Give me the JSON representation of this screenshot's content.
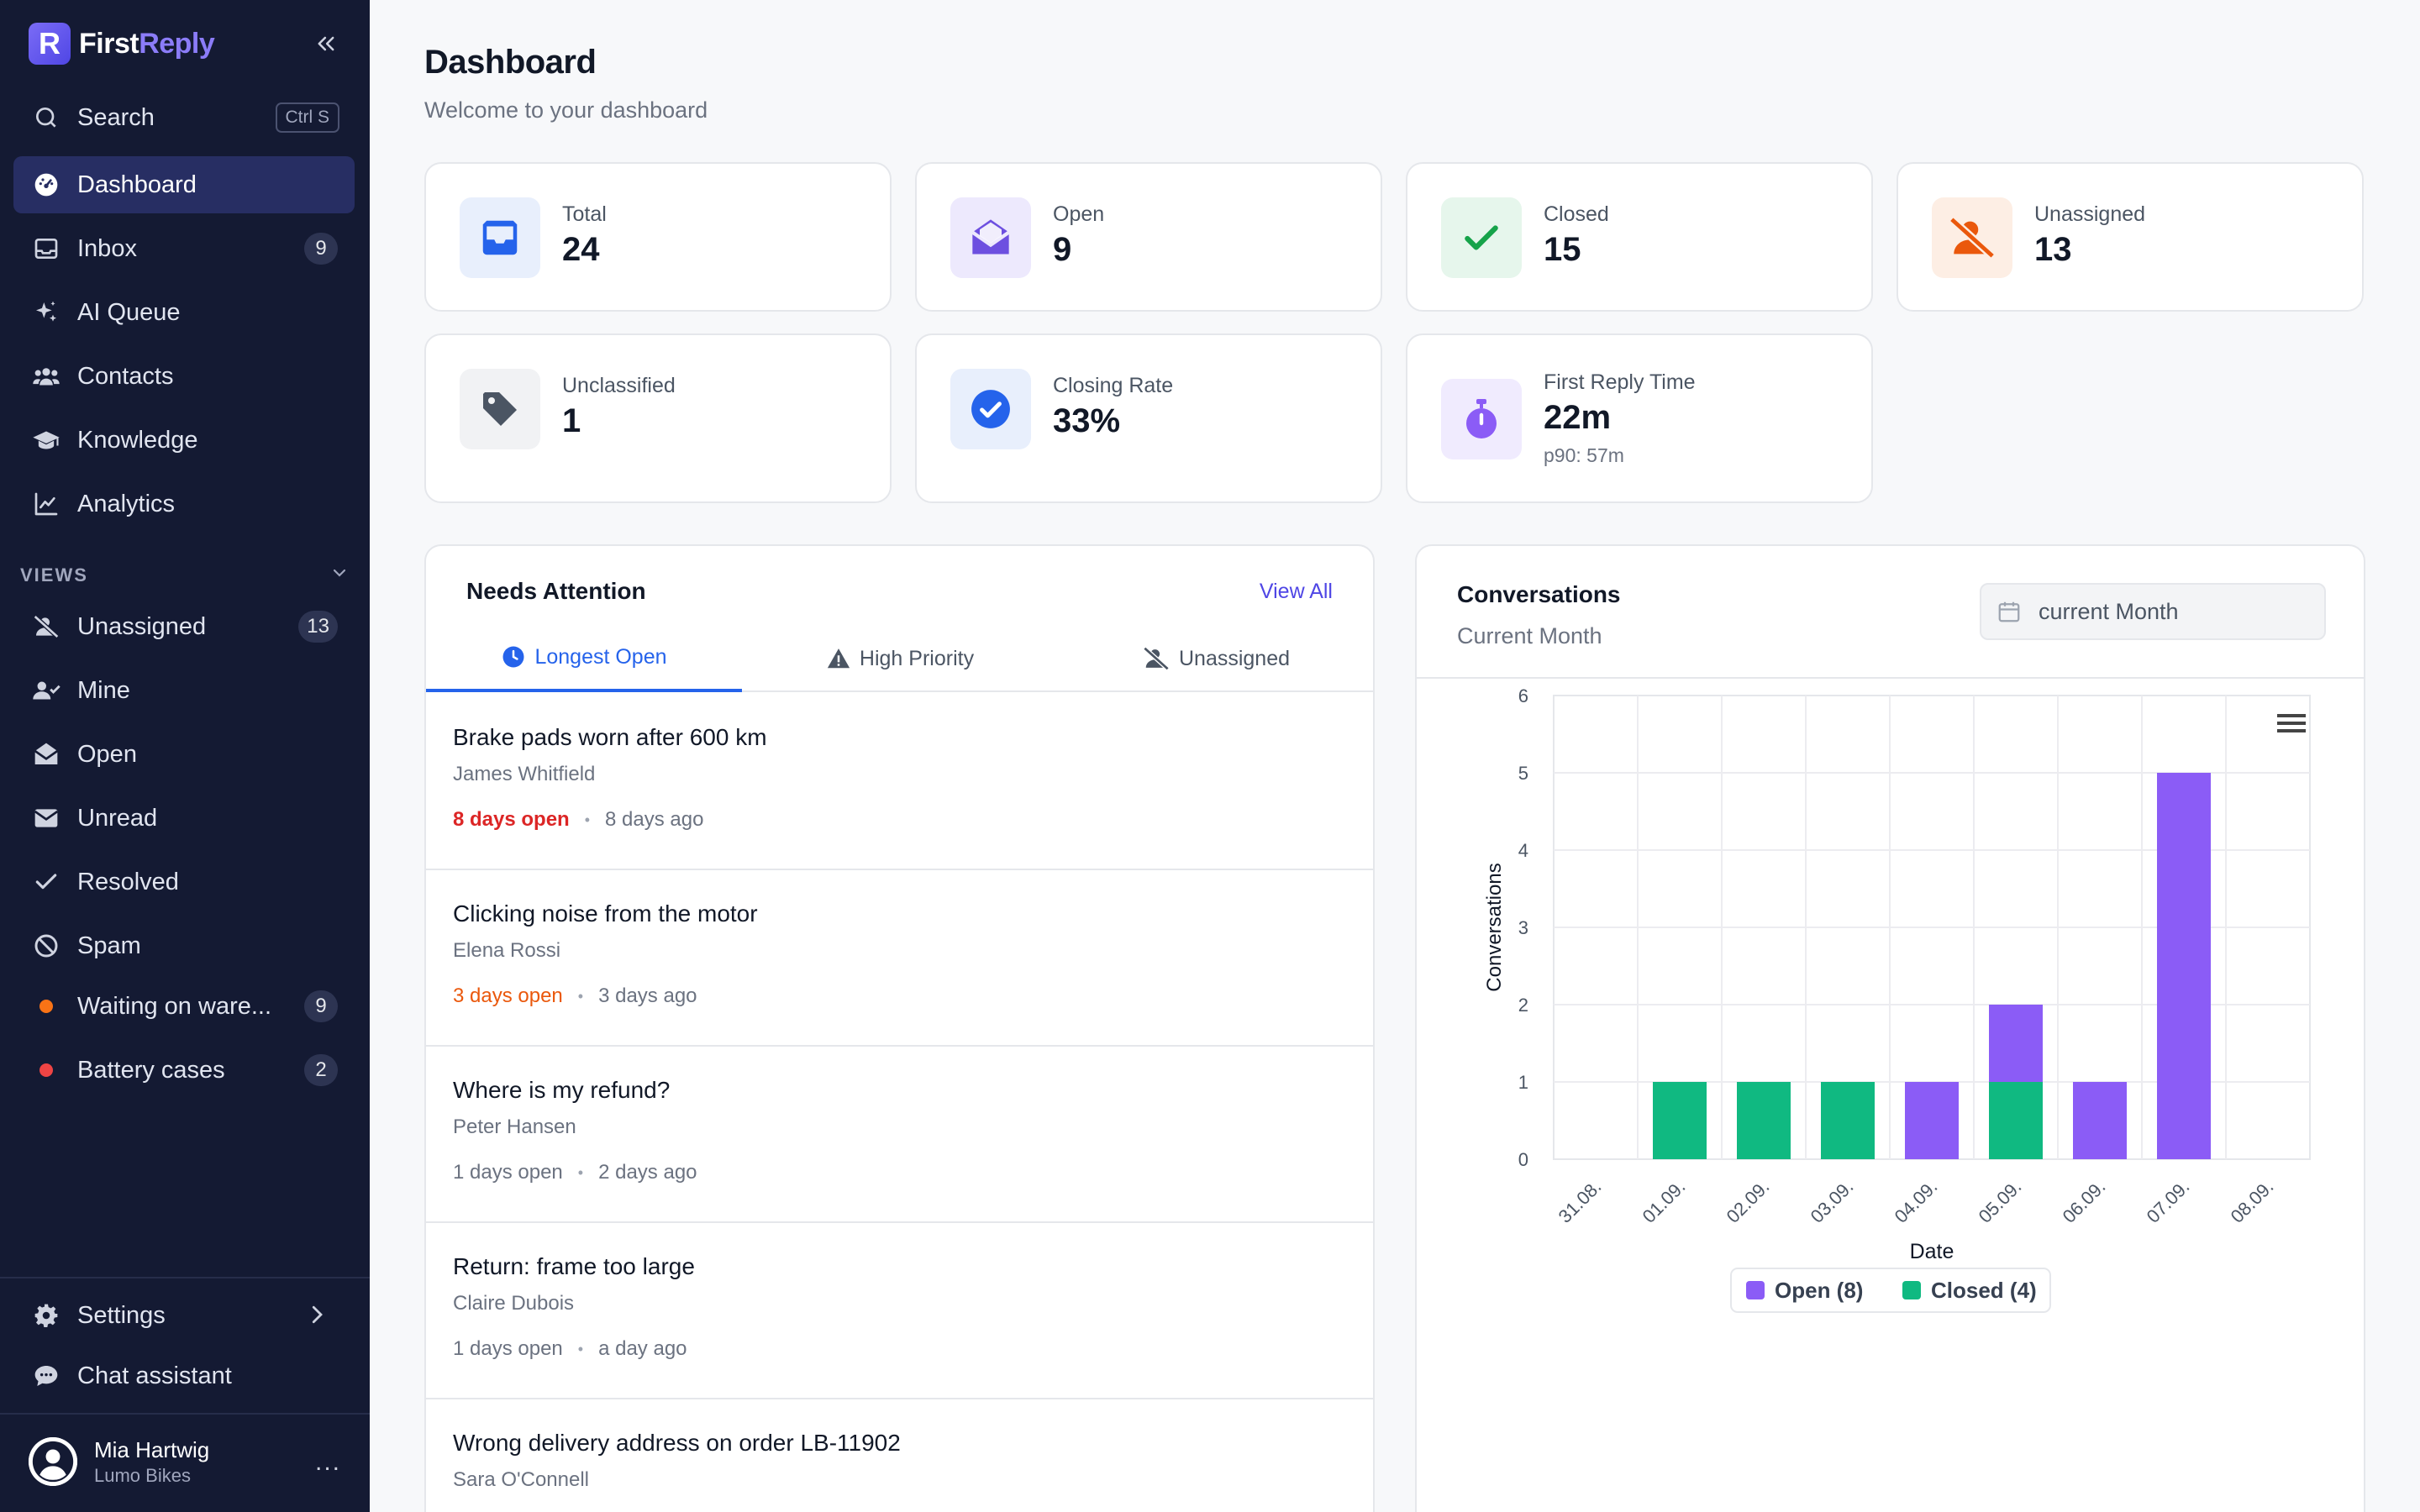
{
  "app": {
    "name_part1": "First",
    "name_part2": "Reply",
    "logo_letter": "R"
  },
  "sidebar": {
    "search": {
      "label": "Search",
      "shortcut": "Ctrl S"
    },
    "nav": [
      {
        "label": "Dashboard",
        "icon": "dashboard-icon",
        "active": true
      },
      {
        "label": "Inbox",
        "icon": "inbox-icon",
        "badge": "9"
      },
      {
        "label": "AI Queue",
        "icon": "sparkles-icon"
      },
      {
        "label": "Contacts",
        "icon": "users-icon"
      },
      {
        "label": "Knowledge",
        "icon": "graduation-cap-icon"
      },
      {
        "label": "Analytics",
        "icon": "chart-line-icon"
      }
    ],
    "views_label": "VIEWS",
    "views": [
      {
        "label": "Unassigned",
        "icon": "user-slash-icon",
        "badge": "13"
      },
      {
        "label": "Mine",
        "icon": "user-check-icon"
      },
      {
        "label": "Open",
        "icon": "envelope-open-icon"
      },
      {
        "label": "Unread",
        "icon": "envelope-icon"
      },
      {
        "label": "Resolved",
        "icon": "check-icon"
      },
      {
        "label": "Spam",
        "icon": "ban-icon"
      },
      {
        "label": "Waiting on ware...",
        "dot_color": "#f97316",
        "badge": "9"
      },
      {
        "label": "Battery cases",
        "dot_color": "#ef4444",
        "badge": "2"
      }
    ],
    "settings_label": "Settings",
    "chat_label": "Chat assistant",
    "user": {
      "name": "Mia Hartwig",
      "org": "Lumo Bikes",
      "menu": "..."
    }
  },
  "page": {
    "title": "Dashboard",
    "subtitle": "Welcome to your dashboard"
  },
  "stats": [
    {
      "label": "Total",
      "value": "24",
      "icon": "inbox-tray-icon",
      "color": "#2563eb",
      "bg": "#e8effc"
    },
    {
      "label": "Open",
      "value": "9",
      "icon": "envelope-open-icon",
      "color": "#6d4fe0",
      "bg": "#ede9fd"
    },
    {
      "label": "Closed",
      "value": "15",
      "icon": "check-icon",
      "color": "#16a34a",
      "bg": "#e6f6ec"
    },
    {
      "label": "Unassigned",
      "value": "13",
      "icon": "user-slash-icon",
      "color": "#ea580c",
      "bg": "#fdeee4"
    },
    {
      "label": "Unclassified",
      "value": "1",
      "icon": "tag-icon",
      "color": "#4b5563",
      "bg": "#f1f2f4"
    },
    {
      "label": "Closing Rate",
      "value": "33%",
      "icon": "check-circle-icon",
      "color": "#2563eb",
      "bg": "#e8effc"
    },
    {
      "label": "First Reply Time",
      "value": "22m",
      "note": "p90: 57m",
      "icon": "stopwatch-icon",
      "color": "#8b5cf6",
      "bg": "#f0ebfe"
    }
  ],
  "attention": {
    "title": "Needs Attention",
    "view_all": "View All",
    "tabs": [
      {
        "label": "Longest Open",
        "icon": "clock-icon",
        "active": true
      },
      {
        "label": "High Priority",
        "icon": "warning-icon"
      },
      {
        "label": "Unassigned",
        "icon": "user-slash-icon"
      }
    ],
    "items": [
      {
        "title": "Brake pads worn after 600 km",
        "name": "James Whitfield",
        "open": "8 days open",
        "ago": "8 days ago",
        "level": "red"
      },
      {
        "title": "Clicking noise from the motor",
        "name": "Elena Rossi",
        "open": "3 days open",
        "ago": "3 days ago",
        "level": "orange"
      },
      {
        "title": "Where is my refund?",
        "name": "Peter Hansen",
        "open": "1 days open",
        "ago": "2 days ago",
        "level": "gray"
      },
      {
        "title": "Return: frame too large",
        "name": "Claire Dubois",
        "open": "1 days open",
        "ago": "a day ago",
        "level": "gray"
      },
      {
        "title": "Wrong delivery address on order LB-11902",
        "name": "Sara O'Connell",
        "open": "",
        "ago": "",
        "level": "gray"
      }
    ]
  },
  "conversations": {
    "title": "Conversations",
    "subtitle": "Current Month",
    "date_placeholder": "current Month"
  },
  "chart_data": {
    "type": "bar",
    "stacked": true,
    "categories": [
      "31.08.",
      "01.09.",
      "02.09.",
      "03.09.",
      "04.09.",
      "05.09.",
      "06.09.",
      "07.09.",
      "08.09."
    ],
    "series": [
      {
        "name": "Closed",
        "legend": "Closed (4)",
        "color": "#10b981",
        "values": [
          0,
          1,
          1,
          1,
          0,
          1,
          0,
          0,
          0
        ]
      },
      {
        "name": "Open",
        "legend": "Open (8)",
        "color": "#8b5cf6",
        "values": [
          0,
          0,
          0,
          0,
          1,
          1,
          1,
          5,
          0
        ]
      }
    ],
    "xlabel": "Date",
    "ylabel": "Conversations",
    "ylim": [
      0,
      6
    ],
    "yticks": [
      "0",
      "1",
      "2",
      "3",
      "4",
      "5",
      "6"
    ],
    "grid": true,
    "legend_position": "bottom"
  }
}
